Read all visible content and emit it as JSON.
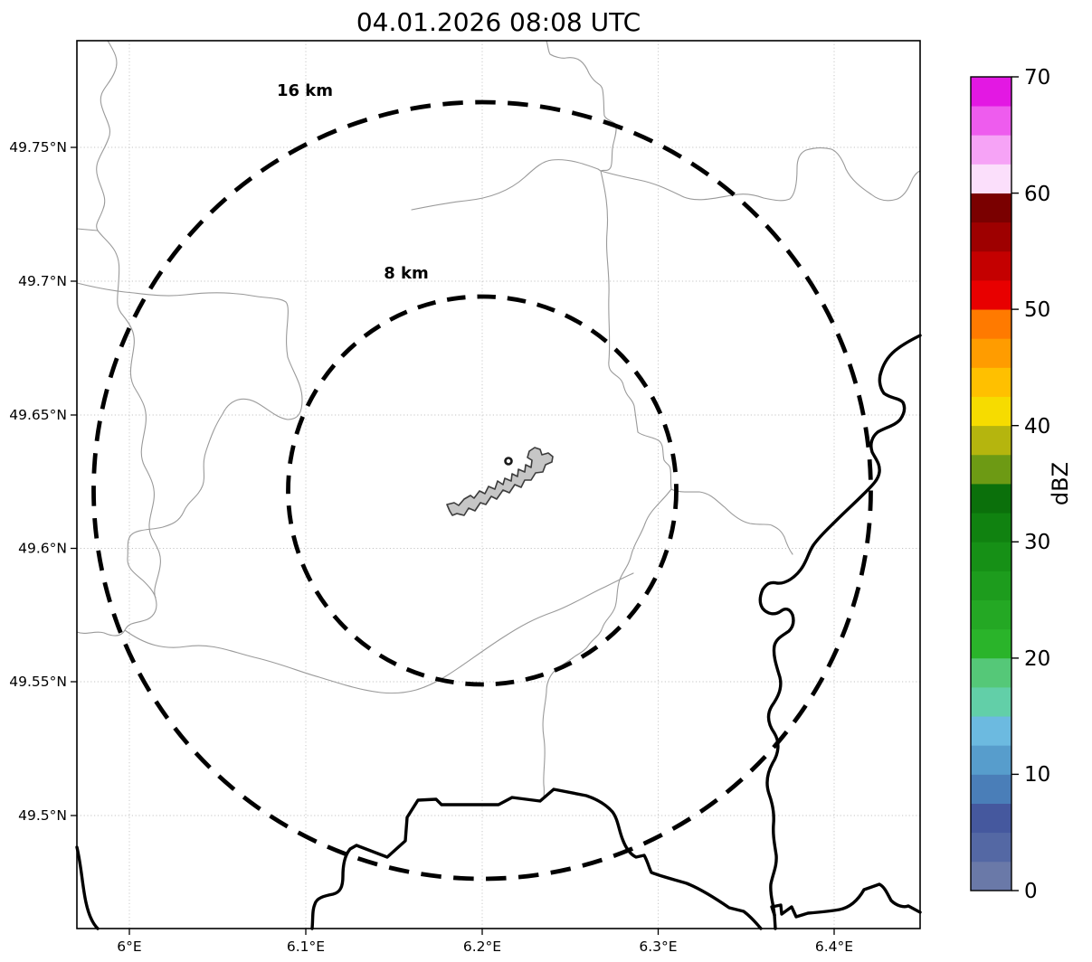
{
  "title": "04.01.2026 08:08 UTC",
  "map": {
    "x_axis": {
      "labels": [
        "6°E",
        "6.1°E",
        "6.2°E",
        "6.3°E",
        "6.4°E"
      ]
    },
    "y_axis": {
      "labels": [
        "49.75°N",
        "49.7°N",
        "49.65°N",
        "49.6°N",
        "49.55°N",
        "49.5°N"
      ]
    },
    "range_rings": {
      "outer_label": "16 km",
      "inner_label": "8 km",
      "outer_radius_km": 16,
      "inner_radius_km": 8
    }
  },
  "colorbar": {
    "label": "dBZ",
    "min": 0,
    "max": 70,
    "ticks": [
      "0",
      "10",
      "20",
      "30",
      "40",
      "50",
      "60",
      "70"
    ],
    "colors_bottom_to_top": [
      "#6A79A8",
      "#5468A4",
      "#45589E",
      "#4A7EB8",
      "#579DCC",
      "#6CBAE0",
      "#62CFA8",
      "#55C878",
      "#2AB42A",
      "#24A824",
      "#1D9C1D",
      "#169016",
      "#108210",
      "#0B700B",
      "#6D9A14",
      "#B5B50E",
      "#F6DC00",
      "#FFC000",
      "#FF9C00",
      "#FF7A00",
      "#E80000",
      "#C40000",
      "#9E0000",
      "#7A0000",
      "#FBDFFB",
      "#F6A3F6",
      "#EE5CEE",
      "#E318E3"
    ]
  },
  "chart_data": {
    "type": "map",
    "title": "04.01.2026 08:08 UTC",
    "x_axis_ticks_lon_E": [
      6.0,
      6.1,
      6.2,
      6.3,
      6.4
    ],
    "y_axis_ticks_lat_N": [
      49.75,
      49.7,
      49.65,
      49.6,
      49.55,
      49.5
    ],
    "range_rings_km": [
      8,
      16
    ],
    "colorbar_scale": {
      "label": "dBZ",
      "min": 0,
      "max": 70,
      "tick_step": 10,
      "segment_step": 2.5
    },
    "grid": "dotted",
    "legend_position": "right-colorbar"
  }
}
